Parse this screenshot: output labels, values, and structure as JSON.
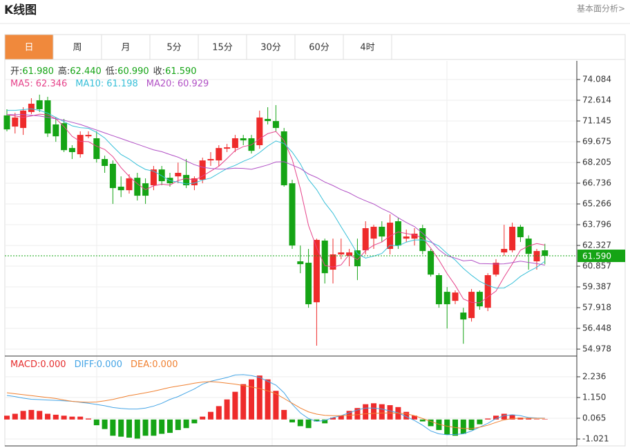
{
  "header": {
    "title": "K线图",
    "link": "基本面分析>"
  },
  "tabs": {
    "items": [
      "日",
      "周",
      "月",
      "5分",
      "15分",
      "30分",
      "60分",
      "4时"
    ],
    "active": 0
  },
  "chart_data": [
    {
      "type": "candlestick",
      "up_color": "#ee2b2b",
      "down_color": "#15a415",
      "info": [
        {
          "label": "开:",
          "value": "61.980"
        },
        {
          "label": "高:",
          "value": "62.440"
        },
        {
          "label": "低:",
          "value": "60.990"
        },
        {
          "label": "收:",
          "value": "61.590"
        }
      ],
      "ylim": [
        54.488,
        75.407
      ],
      "yticks": [
        74.084,
        72.614,
        71.145,
        69.675,
        68.205,
        66.736,
        65.266,
        63.796,
        62.327,
        60.857,
        59.387,
        57.918,
        56.448,
        54.978
      ],
      "grid": true,
      "open": [
        71.54,
        70.75,
        70.65,
        71.78,
        72.61,
        72.61,
        70.9,
        70.99,
        69.23,
        68.79,
        70.06,
        69.92,
        68.45,
        68.11,
        66.49,
        66.24,
        67.12,
        66.73,
        66.59,
        67.71,
        67.12,
        67.22,
        67.32,
        66.59,
        66.98,
        68.35,
        68.35,
        69.18,
        69.23,
        69.92,
        69.92,
        69.43,
        71.29,
        71.14,
        70.41,
        66.73,
        61.2,
        61.1,
        58.3,
        62.67,
        60.61,
        61.69,
        61.59,
        61.98,
        61.98,
        62.81,
        63.65,
        62.08,
        64.04,
        62.81,
        62.81,
        63.55,
        61.93,
        60.22,
        59.04,
        58.4,
        57.57,
        57.18,
        59.04,
        57.91,
        60.26,
        61.83,
        61.98,
        63.65,
        62.81,
        61.2,
        61.98
      ],
      "close": [
        70.55,
        71.39,
        71.88,
        72.37,
        71.98,
        70.26,
        70.06,
        69.08,
        68.94,
        70.16,
        70.16,
        68.45,
        67.96,
        66.39,
        66.24,
        67.08,
        65.85,
        65.85,
        67.71,
        66.88,
        66.73,
        67.47,
        66.59,
        67.08,
        68.35,
        68.45,
        69.23,
        69.28,
        69.92,
        69.77,
        69.03,
        71.39,
        71.14,
        70.65,
        66.59,
        62.32,
        61.0,
        58.16,
        62.72,
        60.36,
        61.69,
        61.83,
        61.83,
        60.85,
        63.55,
        63.65,
        62.96,
        63.94,
        62.32,
        62.96,
        63.16,
        61.93,
        60.26,
        58.16,
        58.16,
        58.99,
        57.08,
        59.04,
        58.01,
        60.22,
        61.1,
        62.08,
        63.65,
        62.91,
        61.73,
        61.93,
        61.59
      ],
      "low": [
        70.41,
        70.26,
        70.16,
        71.63,
        71.78,
        70.01,
        69.67,
        68.94,
        68.45,
        68.55,
        69.92,
        68.2,
        67.47,
        65.27,
        65.75,
        66.0,
        65.51,
        65.27,
        66.24,
        66.59,
        66.49,
        66.73,
        66.39,
        66.24,
        66.73,
        67.96,
        67.96,
        68.94,
        68.94,
        69.43,
        68.84,
        69.18,
        70.9,
        70.41,
        66.49,
        62.08,
        60.36,
        57.91,
        55.22,
        59.63,
        59.63,
        61.35,
        60.85,
        59.87,
        61.69,
        62.08,
        62.57,
        61.69,
        62.08,
        62.57,
        62.32,
        61.69,
        60.12,
        57.91,
        56.44,
        58.16,
        55.36,
        56.93,
        57.77,
        57.67,
        60.12,
        61.59,
        61.83,
        62.57,
        60.61,
        60.61,
        60.99
      ],
      "high": [
        71.98,
        71.73,
        72.12,
        72.76,
        73.01,
        72.86,
        71.39,
        71.29,
        69.43,
        70.41,
        70.41,
        70.41,
        68.69,
        68.35,
        67.22,
        67.37,
        67.47,
        67.08,
        67.96,
        67.96,
        67.47,
        68.2,
        68.45,
        67.22,
        68.55,
        68.94,
        69.43,
        69.52,
        70.16,
        70.16,
        70.16,
        71.88,
        72.12,
        72.27,
        70.65,
        66.98,
        62.32,
        62.08,
        62.81,
        62.81,
        62.81,
        62.81,
        62.08,
        62.81,
        64.04,
        63.79,
        64.04,
        64.53,
        64.28,
        63.45,
        63.55,
        63.79,
        62.08,
        60.36,
        59.38,
        59.14,
        57.91,
        59.24,
        59.14,
        60.36,
        61.35,
        63.79,
        63.94,
        63.79,
        63.04,
        62.08,
        62.44
      ],
      "lines": [
        {
          "name": "MA5:",
          "label": "62.346",
          "color": "#e6428a",
          "values": [
            71.6,
            71.5,
            71.4,
            71.5,
            71.63,
            71.58,
            71.31,
            70.75,
            70.06,
            69.7,
            69.68,
            69.36,
            69.13,
            68.62,
            67.84,
            67.22,
            66.7,
            66.28,
            66.55,
            66.67,
            66.6,
            66.93,
            67.08,
            66.95,
            67.24,
            67.59,
            67.94,
            68.48,
            69.05,
            69.33,
            69.45,
            69.88,
            70.25,
            70.4,
            69.76,
            68.42,
            66.34,
            63.74,
            62.16,
            60.91,
            60.79,
            60.95,
            61.69,
            61.31,
            61.95,
            62.34,
            62.57,
            62.99,
            63.28,
            63.17,
            63.07,
            62.86,
            62.13,
            61.29,
            60.33,
            59.5,
            58.53,
            58.29,
            58.26,
            58.67,
            59.09,
            60.09,
            61.01,
            61.99,
            62.29,
            62.46,
            62.35
          ]
        },
        {
          "name": "MA10:",
          "label": "61.198",
          "color": "#36bfd8",
          "values": [
            71.9,
            71.9,
            71.95,
            72.0,
            71.9,
            71.7,
            71.4,
            71.1,
            70.8,
            70.67,
            70.63,
            70.34,
            69.94,
            69.34,
            68.77,
            68.45,
            68.03,
            67.71,
            67.59,
            67.26,
            66.91,
            66.82,
            66.68,
            66.75,
            66.96,
            67.1,
            67.44,
            67.78,
            68.0,
            68.29,
            68.52,
            68.91,
            69.37,
            69.73,
            69.55,
            68.94,
            68.11,
            67.0,
            66.28,
            65.34,
            64.61,
            63.65,
            62.72,
            61.74,
            61.43,
            61.57,
            61.76,
            62.34,
            62.3,
            62.56,
            62.71,
            62.72,
            62.56,
            62.29,
            61.75,
            61.29,
            60.7,
            60.21,
            59.78,
            59.5,
            59.3,
            59.31,
            59.65,
            60.13,
            60.48,
            60.78,
            61.2
          ]
        },
        {
          "name": "MA20:",
          "label": "60.929",
          "color": "#b150c5",
          "values": [
            71.6,
            71.6,
            71.6,
            71.55,
            71.5,
            71.4,
            71.3,
            71.2,
            71.05,
            70.9,
            70.7,
            70.5,
            70.3,
            70.1,
            69.9,
            69.7,
            69.5,
            69.3,
            69.1,
            68.97,
            68.77,
            68.58,
            68.31,
            68.05,
            67.87,
            67.78,
            67.74,
            67.75,
            67.8,
            67.78,
            67.72,
            67.87,
            68.03,
            68.24,
            68.26,
            68.02,
            67.78,
            67.39,
            67.14,
            66.82,
            66.57,
            66.28,
            66.05,
            65.74,
            65.49,
            65.26,
            64.94,
            64.67,
            64.29,
            63.95,
            63.66,
            63.19,
            62.64,
            62.02,
            61.59,
            61.43,
            61.23,
            61.28,
            61.04,
            61.03,
            61.01,
            61.02,
            61.11,
            61.21,
            61.12,
            61.04,
            60.93
          ]
        }
      ],
      "last_price": {
        "value": 61.59,
        "label": "61.590",
        "color": "#15a415"
      }
    },
    {
      "type": "macd",
      "ylim": [
        -1.383,
        3.321
      ],
      "yticks": [
        2.236,
        {
          "value": 1.15,
          "label": "1.150"
        },
        0.065,
        -1.021
      ],
      "up_color": "#ee2b2b",
      "down_color": "#15a415",
      "series": [
        {
          "name": "MACD:",
          "label": "0.000",
          "color": "#e62e2e",
          "values": [
            0.2,
            0.3,
            0.45,
            0.5,
            0.45,
            0.3,
            0.25,
            0.2,
            0.15,
            0.15,
            0.05,
            -0.3,
            -0.5,
            -0.85,
            -0.9,
            -0.95,
            -1.0,
            -0.85,
            -0.85,
            -0.75,
            -0.7,
            -0.55,
            -0.45,
            -0.2,
            0.15,
            0.4,
            0.7,
            1.05,
            1.45,
            1.85,
            2.1,
            2.3,
            2.1,
            1.5,
            0.5,
            -0.15,
            -0.35,
            -0.45,
            -0.1,
            -0.2,
            0.1,
            0.2,
            0.45,
            0.6,
            0.8,
            0.85,
            0.8,
            0.75,
            0.65,
            0.4,
            0.2,
            -0.1,
            -0.35,
            -0.55,
            -0.8,
            -0.85,
            -0.75,
            -0.55,
            -0.25,
            0.05,
            0.2,
            0.3,
            0.25,
            0.1,
            0.05,
            0.02,
            0.02
          ]
        },
        {
          "name": "DIFF:",
          "label": "0.000",
          "color": "#45a5e6",
          "values": [
            1.26,
            1.2,
            1.12,
            1.06,
            1.04,
            1.02,
            1.0,
            0.98,
            0.95,
            0.9,
            0.85,
            0.79,
            0.72,
            0.63,
            0.58,
            0.55,
            0.55,
            0.6,
            0.7,
            0.85,
            1.05,
            1.2,
            1.4,
            1.6,
            1.85,
            2.0,
            2.1,
            2.2,
            2.33,
            2.35,
            2.3,
            2.2,
            2.0,
            1.8,
            1.4,
            0.8,
            0.35,
            0.05,
            -0.1,
            -0.05,
            0.1,
            0.2,
            0.35,
            0.5,
            0.6,
            0.6,
            0.55,
            0.45,
            0.35,
            0.15,
            -0.05,
            -0.3,
            -0.6,
            -0.75,
            -0.8,
            -0.78,
            -0.75,
            -0.6,
            -0.4,
            -0.2,
            0.05,
            0.2,
            0.25,
            0.2,
            0.1,
            0.08,
            0.07
          ]
        },
        {
          "name": "DEA:",
          "label": "0.000",
          "color": "#f08030",
          "values": [
            1.4,
            1.35,
            1.3,
            1.25,
            1.2,
            1.15,
            1.1,
            1.02,
            0.95,
            0.92,
            0.9,
            0.92,
            0.98,
            1.05,
            1.15,
            1.25,
            1.32,
            1.4,
            1.48,
            1.58,
            1.68,
            1.75,
            1.82,
            1.9,
            1.96,
            1.98,
            1.95,
            1.9,
            1.85,
            1.78,
            1.7,
            1.62,
            1.5,
            1.35,
            1.1,
            0.85,
            0.6,
            0.4,
            0.28,
            0.22,
            0.2,
            0.2,
            0.22,
            0.25,
            0.3,
            0.32,
            0.34,
            0.34,
            0.33,
            0.3,
            0.2,
            0.05,
            -0.1,
            -0.25,
            -0.35,
            -0.42,
            -0.47,
            -0.48,
            -0.4,
            -0.3,
            -0.15,
            -0.02,
            0.05,
            0.07,
            0.07,
            0.06,
            0.06
          ]
        }
      ]
    }
  ]
}
